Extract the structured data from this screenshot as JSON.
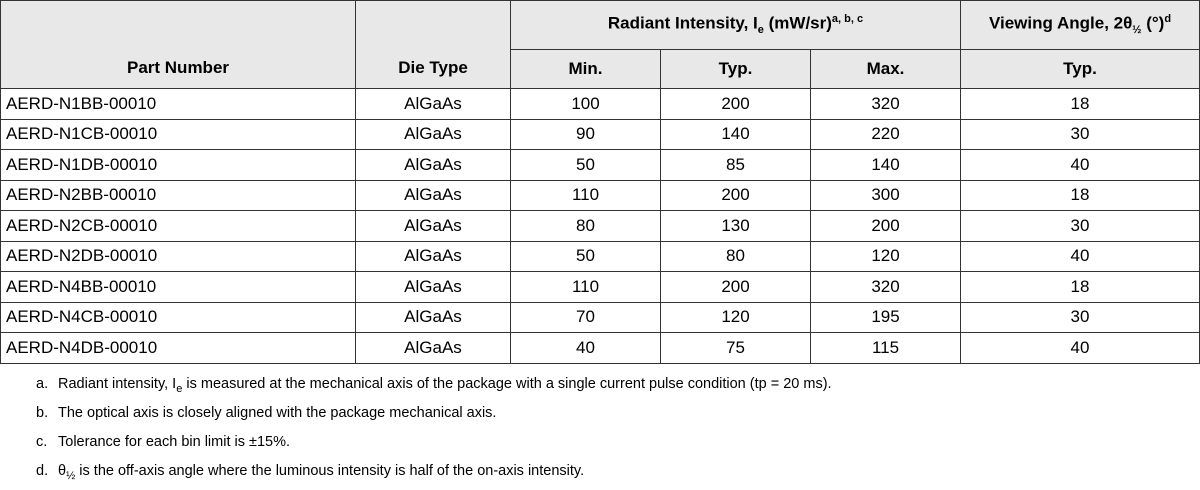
{
  "table": {
    "headers": {
      "part_number": "Part Number",
      "die_type": "Die Type",
      "radiant_intensity": {
        "text": "Radiant Intensity, I",
        "sub": "e",
        "unit": " (mW/sr)",
        "sup": "a, b, c"
      },
      "viewing_angle": {
        "text": "Viewing Angle, 2θ",
        "sub": "½",
        "unit": " (°)",
        "sup": "d"
      },
      "min": "Min.",
      "typ": "Typ.",
      "max": "Max.",
      "va_typ": "Typ."
    },
    "rows": [
      {
        "part": "AERD-N1BB-00010",
        "die": "AlGaAs",
        "min": "100",
        "typ": "200",
        "max": "320",
        "angle": "18"
      },
      {
        "part": "AERD-N1CB-00010",
        "die": "AlGaAs",
        "min": "90",
        "typ": "140",
        "max": "220",
        "angle": "30"
      },
      {
        "part": "AERD-N1DB-00010",
        "die": "AlGaAs",
        "min": "50",
        "typ": "85",
        "max": "140",
        "angle": "40"
      },
      {
        "part": "AERD-N2BB-00010",
        "die": "AlGaAs",
        "min": "110",
        "typ": "200",
        "max": "300",
        "angle": "18"
      },
      {
        "part": "AERD-N2CB-00010",
        "die": "AlGaAs",
        "min": "80",
        "typ": "130",
        "max": "200",
        "angle": "30"
      },
      {
        "part": "AERD-N2DB-00010",
        "die": "AlGaAs",
        "min": "50",
        "typ": "80",
        "max": "120",
        "angle": "40"
      },
      {
        "part": "AERD-N4BB-00010",
        "die": "AlGaAs",
        "min": "110",
        "typ": "200",
        "max": "320",
        "angle": "18"
      },
      {
        "part": "AERD-N4CB-00010",
        "die": "AlGaAs",
        "min": "70",
        "typ": "120",
        "max": "195",
        "angle": "30"
      },
      {
        "part": "AERD-N4DB-00010",
        "die": "AlGaAs",
        "min": "40",
        "typ": "75",
        "max": "115",
        "angle": "40"
      }
    ]
  },
  "notes": [
    {
      "label": "a.",
      "pre": "Radiant intensity, I",
      "sub": "e",
      "post": " is measured at the mechanical axis of the package with a single current pulse condition (tp = 20 ms)."
    },
    {
      "label": "b.",
      "pre": "The optical axis is closely aligned with the package mechanical axis.",
      "sub": "",
      "post": ""
    },
    {
      "label": "c.",
      "pre": "Tolerance for each bin limit is ±15%.",
      "sub": "",
      "post": ""
    },
    {
      "label": "d.",
      "pre": "θ",
      "sub": "½",
      "post": " is the off-axis angle where the luminous intensity is half of the on-axis intensity."
    }
  ]
}
